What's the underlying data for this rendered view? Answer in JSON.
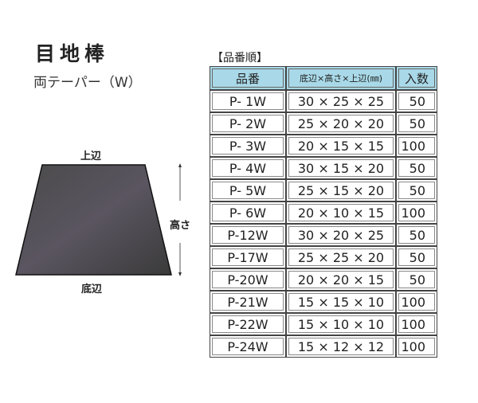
{
  "title": "目地棒",
  "subtitle": "両テーパー（W）",
  "diagram": {
    "top": "上辺",
    "height": "高さ",
    "bottom": "底辺"
  },
  "table": {
    "section": "【品番順】",
    "headers": [
      "品番",
      "底辺×高さ×上辺(㎜)",
      "入数"
    ],
    "rows": [
      [
        "P- 1W",
        "30 × 25 × 25",
        "50"
      ],
      [
        "P- 2W",
        "25 × 20 × 20",
        "50"
      ],
      [
        "P- 3W",
        "20 × 15 × 15",
        "100"
      ],
      [
        "P- 4W",
        "30 × 15 × 20",
        "50"
      ],
      [
        "P- 5W",
        "25 × 15 × 20",
        "50"
      ],
      [
        "P- 6W",
        "20 × 10 × 15",
        "100"
      ],
      [
        "P-12W",
        "30 × 20 × 25",
        "50"
      ],
      [
        "P-17W",
        "25 × 25 × 20",
        "50"
      ],
      [
        "P-20W",
        "20 × 20 × 15",
        "50"
      ],
      [
        "P-21W",
        "15 × 15 × 10",
        "100"
      ],
      [
        "P-22W",
        "15 × 10 × 10",
        "100"
      ],
      [
        "P-24W",
        "15 × 12 ×  12",
        "100"
      ]
    ]
  },
  "colors": {
    "header_bg": "#a9d9e8"
  }
}
